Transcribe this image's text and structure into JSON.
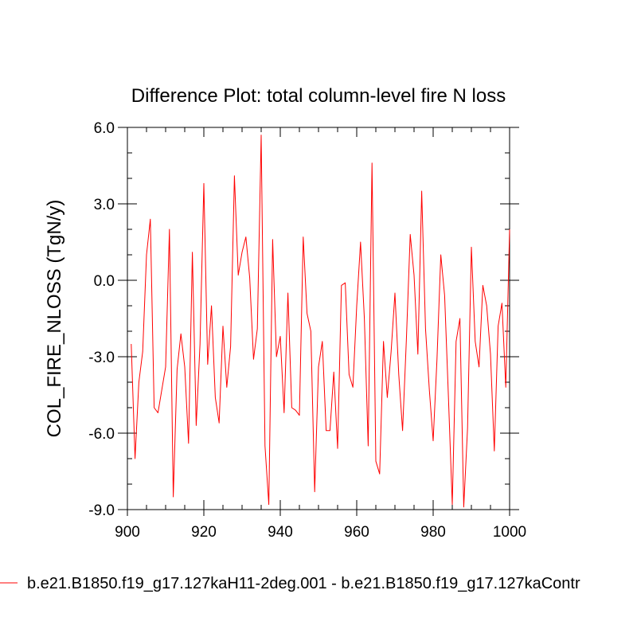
{
  "chart_data": {
    "type": "line",
    "title": "Difference Plot: total column-level fire N loss",
    "ylabel": "COL_FIRE_NLOSS  (TgN/y)",
    "xlabel": "",
    "xlim": [
      900,
      1000
    ],
    "ylim": [
      -9.0,
      6.0
    ],
    "xticks": [
      900,
      920,
      940,
      960,
      980,
      1000
    ],
    "yticks": [
      6.0,
      3.0,
      0.0,
      -3.0,
      -6.0,
      -9.0
    ],
    "ytick_labels": [
      "6.0",
      "3.0",
      "0.0",
      "-3.0",
      "-6.0",
      "-9.0"
    ],
    "grid": false,
    "legend_position": "bottom-left",
    "series": [
      {
        "name": "b.e21.B1850.f19_g17.127kaH11-2deg.001 - b.e21.B1850.f19_g17.127kaContr",
        "color": "#ff0000",
        "x": [
          901,
          902,
          903,
          904,
          905,
          906,
          907,
          908,
          909,
          910,
          911,
          912,
          913,
          914,
          915,
          916,
          917,
          918,
          919,
          920,
          921,
          922,
          923,
          924,
          925,
          926,
          927,
          928,
          929,
          930,
          931,
          932,
          933,
          934,
          935,
          936,
          937,
          938,
          939,
          940,
          941,
          942,
          943,
          944,
          945,
          946,
          947,
          948,
          949,
          950,
          951,
          952,
          953,
          954,
          955,
          956,
          957,
          958,
          959,
          960,
          961,
          962,
          963,
          964,
          965,
          966,
          967,
          968,
          969,
          970,
          971,
          972,
          973,
          974,
          975,
          976,
          977,
          978,
          979,
          980,
          981,
          982,
          983,
          984,
          985,
          986,
          987,
          988,
          989,
          990,
          991,
          992,
          993,
          994,
          995,
          996,
          997,
          998,
          999,
          1000
        ],
        "values": [
          -2.5,
          -7.0,
          -4.0,
          -2.8,
          1.0,
          2.4,
          -5.0,
          -5.2,
          -4.3,
          -3.4,
          2.0,
          -8.5,
          -3.5,
          -2.1,
          -3.4,
          -6.4,
          1.1,
          -5.7,
          -2.5,
          3.8,
          -3.3,
          -1.0,
          -4.6,
          -5.6,
          -1.8,
          -4.2,
          -2.6,
          4.1,
          0.2,
          1.1,
          1.7,
          0.1,
          -3.1,
          -1.9,
          5.7,
          -6.5,
          -8.8,
          1.6,
          -3.0,
          -2.2,
          -5.2,
          -0.5,
          -5.0,
          -5.1,
          -5.3,
          1.7,
          -1.3,
          -2.0,
          -8.3,
          -3.4,
          -2.4,
          -5.9,
          -5.9,
          -3.6,
          -6.6,
          -0.2,
          -0.1,
          -3.7,
          -4.2,
          -1.0,
          1.5,
          -1.5,
          -6.5,
          4.6,
          -7.1,
          -7.6,
          -2.4,
          -4.6,
          -2.8,
          -0.5,
          -3.7,
          -5.9,
          -2.3,
          1.8,
          0.2,
          -2.9,
          3.5,
          -1.9,
          -4.3,
          -6.3,
          -3.1,
          1.0,
          -0.6,
          -4.6,
          -8.8,
          -2.4,
          -1.5,
          -8.9,
          -5.8,
          1.3,
          -2.4,
          -3.4,
          -0.2,
          -1.0,
          -2.9,
          -6.7,
          -1.8,
          -0.9,
          -4.2,
          2.0
        ]
      }
    ]
  }
}
